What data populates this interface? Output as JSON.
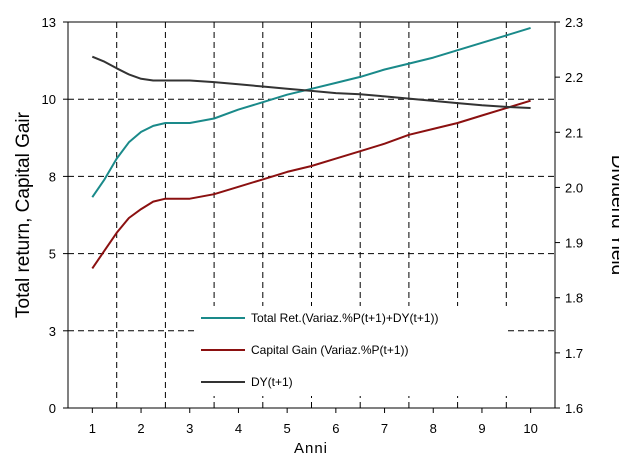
{
  "chart_data": {
    "type": "line",
    "xlabel": "Anni",
    "ylabel": "Total return, Capital Gair",
    "y2label": "Dividend Yield",
    "xlim": [
      0.5,
      10.5
    ],
    "ylim": [
      0,
      13
    ],
    "y2lim": [
      1.6,
      2.3
    ],
    "x_ticks": [
      "1",
      "2",
      "3",
      "4",
      "5",
      "6",
      "7",
      "8",
      "9",
      "10"
    ],
    "y_ticks": [
      "0",
      "3",
      "5",
      "8",
      "10",
      "13"
    ],
    "y_tick_values": [
      0,
      2.6,
      5.2,
      7.8,
      10.4,
      13
    ],
    "y2_ticks": [
      "1.6",
      "1.7",
      "1.8",
      "1.9",
      "2.0",
      "2.1",
      "2.2",
      "2.3"
    ],
    "y2_tick_values": [
      1.6,
      1.7,
      1.8,
      1.9,
      2.0,
      2.1,
      2.2,
      2.3
    ],
    "grid": "dashed",
    "legend_position": "bottom-center",
    "series": [
      {
        "name": "Total Ret.(Variaz.%P(t+1)+DY(t+1))",
        "axis": "left",
        "color": "#1a8a8a",
        "x": [
          1,
          1.25,
          1.5,
          1.75,
          2,
          2.25,
          2.5,
          3,
          3.5,
          4,
          4.5,
          5,
          5.5,
          6,
          6.5,
          7,
          7.5,
          8,
          8.5,
          9,
          9.5,
          10
        ],
        "y": [
          7.1,
          7.7,
          8.4,
          8.95,
          9.3,
          9.5,
          9.6,
          9.6,
          9.75,
          10.05,
          10.3,
          10.55,
          10.75,
          10.95,
          11.15,
          11.4,
          11.6,
          11.8,
          12.05,
          12.3,
          12.55,
          12.8
        ]
      },
      {
        "name": "Capital Gain (Variaz.%P(t+1))",
        "axis": "left",
        "color": "#8b1010",
        "x": [
          1,
          1.25,
          1.5,
          1.75,
          2,
          2.25,
          2.5,
          3,
          3.5,
          4,
          4.5,
          5,
          5.5,
          6,
          6.5,
          7,
          7.5,
          8,
          8.5,
          9,
          9.5,
          10
        ],
        "y": [
          4.7,
          5.3,
          5.9,
          6.4,
          6.7,
          6.95,
          7.05,
          7.05,
          7.2,
          7.45,
          7.7,
          7.95,
          8.15,
          8.4,
          8.65,
          8.9,
          9.2,
          9.4,
          9.6,
          9.85,
          10.1,
          10.35
        ]
      },
      {
        "name": "DY(t+1)",
        "axis": "right",
        "color": "#333333",
        "x": [
          1,
          1.25,
          1.5,
          1.75,
          2,
          2.25,
          2.5,
          3,
          3.5,
          4,
          4.5,
          5,
          5.5,
          6,
          6.5,
          7,
          7.5,
          8,
          8.5,
          9,
          9.5,
          10
        ],
        "y": [
          2.237,
          2.228,
          2.216,
          2.205,
          2.197,
          2.194,
          2.194,
          2.194,
          2.191,
          2.187,
          2.183,
          2.179,
          2.175,
          2.171,
          2.169,
          2.165,
          2.161,
          2.157,
          2.153,
          2.149,
          2.146,
          2.144
        ]
      }
    ]
  }
}
